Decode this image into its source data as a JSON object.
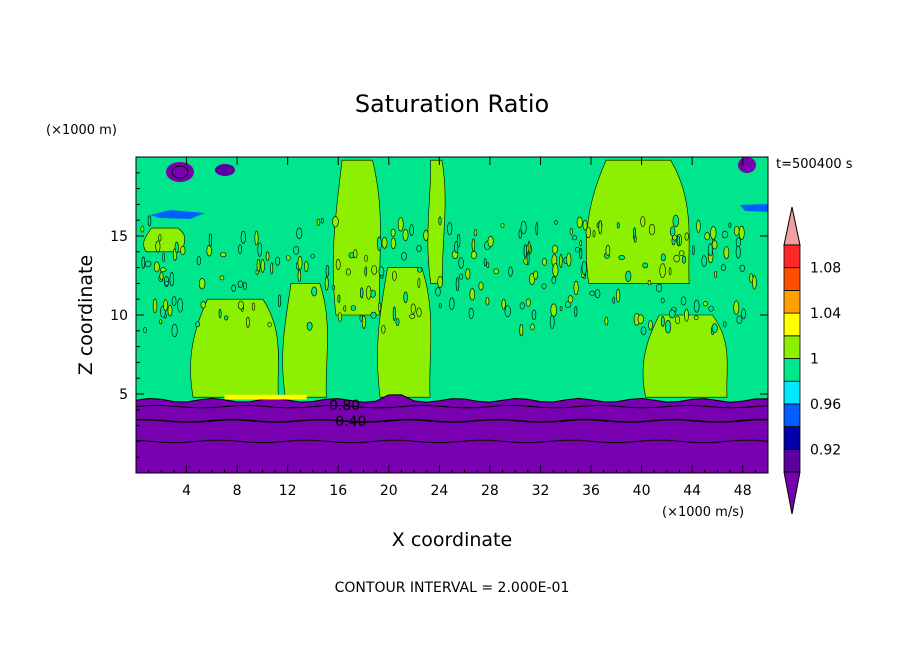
{
  "chart_data": {
    "type": "heatmap",
    "title": "Saturation Ratio",
    "xlabel": "X coordinate",
    "ylabel": "Z coordinate",
    "x_unit": "(×1000 m/s)",
    "y_unit": "(×1000 m)",
    "time_label": "t=500400 s",
    "footer": "CONTOUR INTERVAL = 2.000E-01",
    "xlim": [
      0,
      50
    ],
    "ylim": [
      0,
      20
    ],
    "x_ticks": [
      4,
      8,
      12,
      16,
      20,
      24,
      28,
      32,
      36,
      40,
      44,
      48
    ],
    "y_ticks": [
      5,
      10,
      15
    ],
    "contour_labels": [
      {
        "text": "0.80",
        "x": 16.5,
        "y": 4.3
      },
      {
        "text": "0.40",
        "x": 17.0,
        "y": 3.3
      }
    ],
    "colorbar": {
      "levels": [
        0.9,
        0.92,
        0.94,
        0.96,
        0.98,
        1.0,
        1.02,
        1.04,
        1.06,
        1.08,
        1.1
      ],
      "tick_labels": [
        "0.92",
        "0.96",
        "1",
        "1.04",
        "1.08"
      ],
      "tick_values": [
        0.92,
        0.96,
        1.0,
        1.04,
        1.08
      ],
      "colors": [
        "#5a00a0",
        "#0000a8",
        "#0060ff",
        "#00e8ff",
        "#00e68c",
        "#8cf000",
        "#ffff00",
        "#ffa000",
        "#ff5000",
        "#ff2828"
      ],
      "under_color": "#7800b0",
      "over_color": "#f0a0a0"
    },
    "regions": {
      "base_layer": {
        "z": [
          0,
          4.6
        ],
        "color": "#7800b0"
      },
      "green_layer": {
        "z": [
          4.6,
          20
        ],
        "color": "#00e68c"
      },
      "lime_patches": [
        {
          "x": [
            4.2,
            11.5
          ],
          "z": [
            4.8,
            11
          ]
        },
        {
          "x": [
            11.5,
            15.3
          ],
          "z": [
            4.8,
            12
          ]
        },
        {
          "x": [
            19,
            23.5
          ],
          "z": [
            4.8,
            13
          ]
        },
        {
          "x": [
            15.5,
            19.5
          ],
          "z": [
            10,
            19.8
          ]
        },
        {
          "x": [
            23,
            24.5
          ],
          "z": [
            12,
            19.8
          ]
        },
        {
          "x": [
            35.5,
            44
          ],
          "z": [
            12,
            19.8
          ]
        },
        {
          "x": [
            40,
            47
          ],
          "z": [
            4.8,
            10
          ]
        },
        {
          "x": [
            0.5,
            4
          ],
          "z": [
            14,
            15.5
          ]
        }
      ]
    }
  }
}
